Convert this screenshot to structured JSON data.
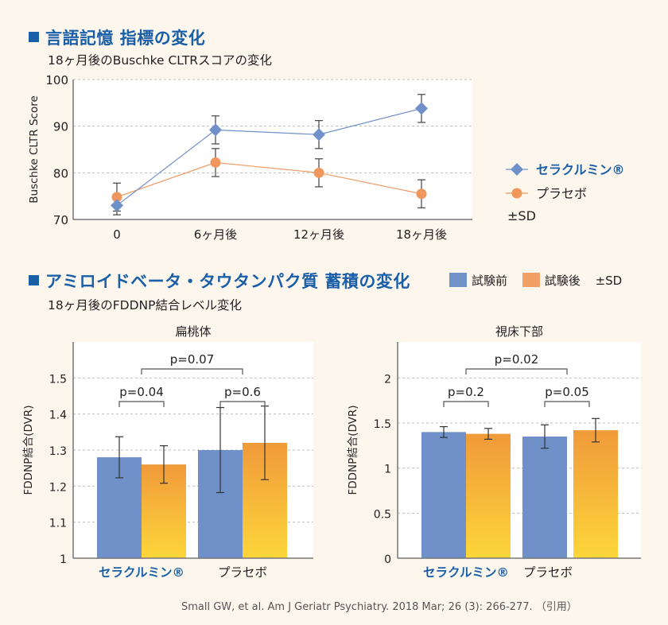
{
  "section1": {
    "title": "言語記憶 指標の変化",
    "subtitle": "18ヶ月後のBuschke CLTRスコアの変化"
  },
  "section2": {
    "title": "アミロイドベータ・タウタンパク質 蓄積の変化",
    "subtitle": "18ヶ月後のFDDNP結合レベル変化",
    "legend": [
      {
        "label": "試験前",
        "color": "#7092c9"
      },
      {
        "label": "試験後",
        "color": "#f0a066"
      }
    ],
    "legend_sd": "±SD"
  },
  "reference": "Small GW, et al. Am J Geriatr Psychiatry. 2018 Mar; 26 (3): 266-277. （引用）",
  "colors": {
    "accent": "#1a5fa8",
    "blue_series": "#6f90c8",
    "orange_series": "#f0975e",
    "bar_orange_top": "#f09a3a",
    "bar_orange_bottom": "#fdd63a"
  },
  "chart_data": [
    {
      "type": "line",
      "title": "18ヶ月後のBuschke CLTRスコアの変化",
      "xlabel": "",
      "ylabel": "Buschke CLTR Score",
      "x": [
        "0",
        "6ヶ月後",
        "12ヶ月後",
        "18ヶ月後"
      ],
      "ylim": [
        70,
        100
      ],
      "yticks": [
        70,
        80,
        90,
        100
      ],
      "grid": true,
      "legend_position": "right",
      "series": [
        {
          "name": "セラクルミン®",
          "marker": "diamond",
          "color": "#6f90c8",
          "values": [
            73,
            89.2,
            88.2,
            93.8
          ],
          "sd": [
            2,
            3,
            3,
            3
          ]
        },
        {
          "name": "プラセボ",
          "marker": "circle",
          "color": "#f0975e",
          "values": [
            74.8,
            82.2,
            80,
            75.5
          ],
          "sd": [
            3,
            3,
            3,
            3
          ]
        }
      ],
      "legend_sd": "±SD"
    },
    {
      "type": "bar",
      "title": "扁桃体",
      "ylabel": "FDDNP結合(DVR)",
      "categories": [
        "セラクルミン®",
        "プラセボ"
      ],
      "ylim": [
        1,
        1.6
      ],
      "yticks": [
        1,
        1.1,
        1.2,
        1.3,
        1.4,
        1.5
      ],
      "ytick_labels": [
        "1",
        "1.1",
        "1.2",
        "1.3",
        "1.4",
        "1.5"
      ],
      "grid": true,
      "series": [
        {
          "name": "試験前",
          "values": [
            1.28,
            1.3
          ],
          "sd": [
            0.057,
            0.118
          ]
        },
        {
          "name": "試験後",
          "values": [
            1.26,
            1.32
          ],
          "sd": [
            0.052,
            0.102
          ]
        }
      ],
      "annotations": [
        {
          "text": "p=0.07",
          "between": "セラクルミン®-プラセボ"
        },
        {
          "text": "p=0.04",
          "between": "セラクルミン® 試験前-試験後"
        },
        {
          "text": "p=0.6",
          "between": "プラセボ 試験前-試験後"
        }
      ]
    },
    {
      "type": "bar",
      "title": "視床下部",
      "ylabel": "FDDNP結合(DVR)",
      "categories": [
        "セラクルミン®",
        "プラセボ"
      ],
      "ylim": [
        0,
        2.4
      ],
      "yticks": [
        0,
        0.5,
        1,
        1.5,
        2
      ],
      "ytick_labels": [
        "0",
        "0.5",
        "1",
        "1.5",
        "2"
      ],
      "grid": true,
      "series": [
        {
          "name": "試験前",
          "values": [
            1.4,
            1.35
          ],
          "sd": [
            0.06,
            0.13
          ]
        },
        {
          "name": "試験後",
          "values": [
            1.38,
            1.42
          ],
          "sd": [
            0.06,
            0.13
          ]
        }
      ],
      "annotations": [
        {
          "text": "p=0.02",
          "between": "セラクルミン®-プラセボ"
        },
        {
          "text": "p=0.2",
          "between": "セラクルミン® 試験前-試験後"
        },
        {
          "text": "p=0.05",
          "between": "プラセボ 試験前-試験後"
        }
      ]
    }
  ]
}
